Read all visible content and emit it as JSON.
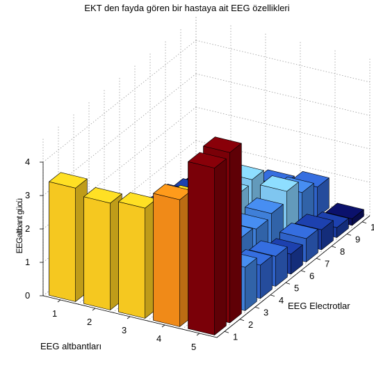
{
  "chart_data": {
    "type": "bar3d",
    "title": "EKT den fayda gören bir hastaya ait EEG özellikleri",
    "xlabel": "EEG altbantları",
    "ylabel": "EEG  Electrotlar",
    "zlabel": "EEGaltbant gücü",
    "x_categories": [
      "1",
      "2",
      "3",
      "4",
      "5"
    ],
    "y_categories": [
      "1",
      "2",
      "3",
      "4",
      "5",
      "6",
      "7",
      "8",
      "9",
      "10"
    ],
    "z_ticks": [
      "0",
      "1",
      "2",
      "3",
      "4"
    ],
    "zlim": [
      0,
      4
    ],
    "grid": true,
    "values": [
      [
        3.4,
        0.6,
        0.5,
        0.7,
        0.6,
        0.3,
        0.5,
        0.5,
        0.3,
        0.2
      ],
      [
        3.2,
        1.2,
        0.4,
        0.5,
        0.9,
        0.5,
        0.7,
        0.8,
        0.5,
        0.4
      ],
      [
        3.3,
        2.8,
        1.0,
        0.9,
        1.2,
        1.3,
        1.5,
        1.6,
        0.8,
        0.7
      ],
      [
        3.8,
        3.4,
        2.9,
        1.6,
        1.2,
        1.1,
        1.2,
        1.5,
        1.1,
        0.9
      ],
      [
        5.0,
        5.1,
        1.3,
        1.0,
        0.9,
        0.6,
        0.7,
        0.6,
        0.3,
        0.2
      ]
    ],
    "row_colors": [
      "#f0f0f0",
      "#f0f0f0",
      "#f0f0f0",
      "#f0f0f0",
      "#f0f0f0"
    ],
    "colormap": [
      "#0a0f60",
      "#1a3a9c",
      "#2f62c8",
      "#3f7fd8",
      "#7fc6f0",
      "#9ed9c0",
      "#c8e85a",
      "#e8e828",
      "#f5c820",
      "#f08a18",
      "#e83010",
      "#c80a0a",
      "#7a0008"
    ]
  }
}
